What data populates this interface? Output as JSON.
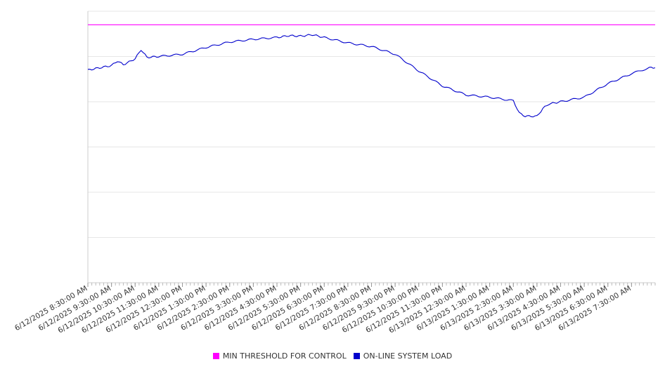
{
  "chart_data": {
    "type": "line",
    "title": "",
    "xlabel": "",
    "ylabel": "",
    "x_start": "6/12/2025 8:30:00 AM",
    "x_end": "6/13/2025 8:30:00 AM",
    "x_tick_labels": [
      "6/12/2025 8:30:00 AM",
      "6/12/2025 9:30:00 AM",
      "6/12/2025 10:30:00 AM",
      "6/12/2025 11:30:00 AM",
      "6/12/2025 12:30:00 PM",
      "6/12/2025 1:30:00 PM",
      "6/12/2025 2:30:00 PM",
      "6/12/2025 3:30:00 PM",
      "6/12/2025 4:30:00 PM",
      "6/12/2025 5:30:00 PM",
      "6/12/2025 6:30:00 PM",
      "6/12/2025 7:30:00 PM",
      "6/12/2025 8:30:00 PM",
      "6/12/2025 9:30:00 PM",
      "6/12/2025 10:30:00 PM",
      "6/12/2025 11:30:00 PM",
      "6/13/2025 12:30:00 AM",
      "6/13/2025 1:30:00 AM",
      "6/13/2025 2:30:00 AM",
      "6/13/2025 3:30:00 AM",
      "6/13/2025 4:30:00 AM",
      "6/13/2025 5:30:00 AM",
      "6/13/2025 6:30:00 AM",
      "6/13/2025 7:30:00 AM"
    ],
    "y_axis_labels_shown": false,
    "ylim": [
      0,
      6
    ],
    "grid": true,
    "legend_position": "bottom",
    "series": [
      {
        "name": "MIN THRESHOLD FOR CONTROL",
        "color": "#ff00ff",
        "x": [
          "6/12/2025 8:30:00 AM",
          "6/13/2025 8:30:00 AM"
        ],
        "values": [
          5.7,
          5.7
        ]
      },
      {
        "name": "ON-LINE SYSTEM LOAD",
        "color": "#0000cc",
        "x": [
          "6/12/2025 8:30:00 AM",
          "6/12/2025 9:00:00 AM",
          "6/12/2025 9:30:00 AM",
          "6/12/2025 9:45:00 AM",
          "6/12/2025 10:00:00 AM",
          "6/12/2025 10:15:00 AM",
          "6/12/2025 10:30:00 AM",
          "6/12/2025 10:45:00 AM",
          "6/12/2025 11:00:00 AM",
          "6/12/2025 11:30:00 AM",
          "6/12/2025 12:30:00 PM",
          "6/12/2025 1:30:00 PM",
          "6/12/2025 2:30:00 PM",
          "6/12/2025 3:30:00 PM",
          "6/12/2025 4:30:00 PM",
          "6/12/2025 5:00:00 PM",
          "6/12/2025 5:30:00 PM",
          "6/12/2025 6:00:00 PM",
          "6/12/2025 6:30:00 PM",
          "6/12/2025 7:30:00 PM",
          "6/12/2025 8:30:00 PM",
          "6/12/2025 9:30:00 PM",
          "6/12/2025 10:30:00 PM",
          "6/12/2025 11:30:00 PM",
          "6/13/2025 12:30:00 AM",
          "6/13/2025 1:30:00 AM",
          "6/13/2025 2:30:00 AM",
          "6/13/2025 2:45:00 AM",
          "6/13/2025 3:00:00 AM",
          "6/13/2025 3:30:00 AM",
          "6/13/2025 3:45:00 AM",
          "6/13/2025 4:00:00 AM",
          "6/13/2025 4:30:00 AM",
          "6/13/2025 5:30:00 AM",
          "6/13/2025 6:30:00 AM",
          "6/13/2025 7:30:00 AM",
          "6/13/2025 8:15:00 AM",
          "6/13/2025 8:30:00 AM"
        ],
        "values": [
          4.7,
          4.75,
          4.8,
          4.9,
          4.82,
          4.88,
          4.95,
          5.15,
          4.98,
          5.0,
          5.05,
          5.2,
          5.32,
          5.38,
          5.42,
          5.46,
          5.45,
          5.48,
          5.42,
          5.3,
          5.22,
          5.05,
          4.68,
          4.35,
          4.15,
          4.1,
          4.02,
          3.75,
          3.68,
          3.68,
          3.85,
          3.95,
          4.0,
          4.1,
          4.4,
          4.62,
          4.75,
          4.75
        ]
      }
    ]
  },
  "legend": {
    "items": [
      {
        "label": "MIN THRESHOLD FOR CONTROL",
        "color": "#ff00ff"
      },
      {
        "label": "ON-LINE SYSTEM LOAD",
        "color": "#0000cc"
      }
    ]
  }
}
